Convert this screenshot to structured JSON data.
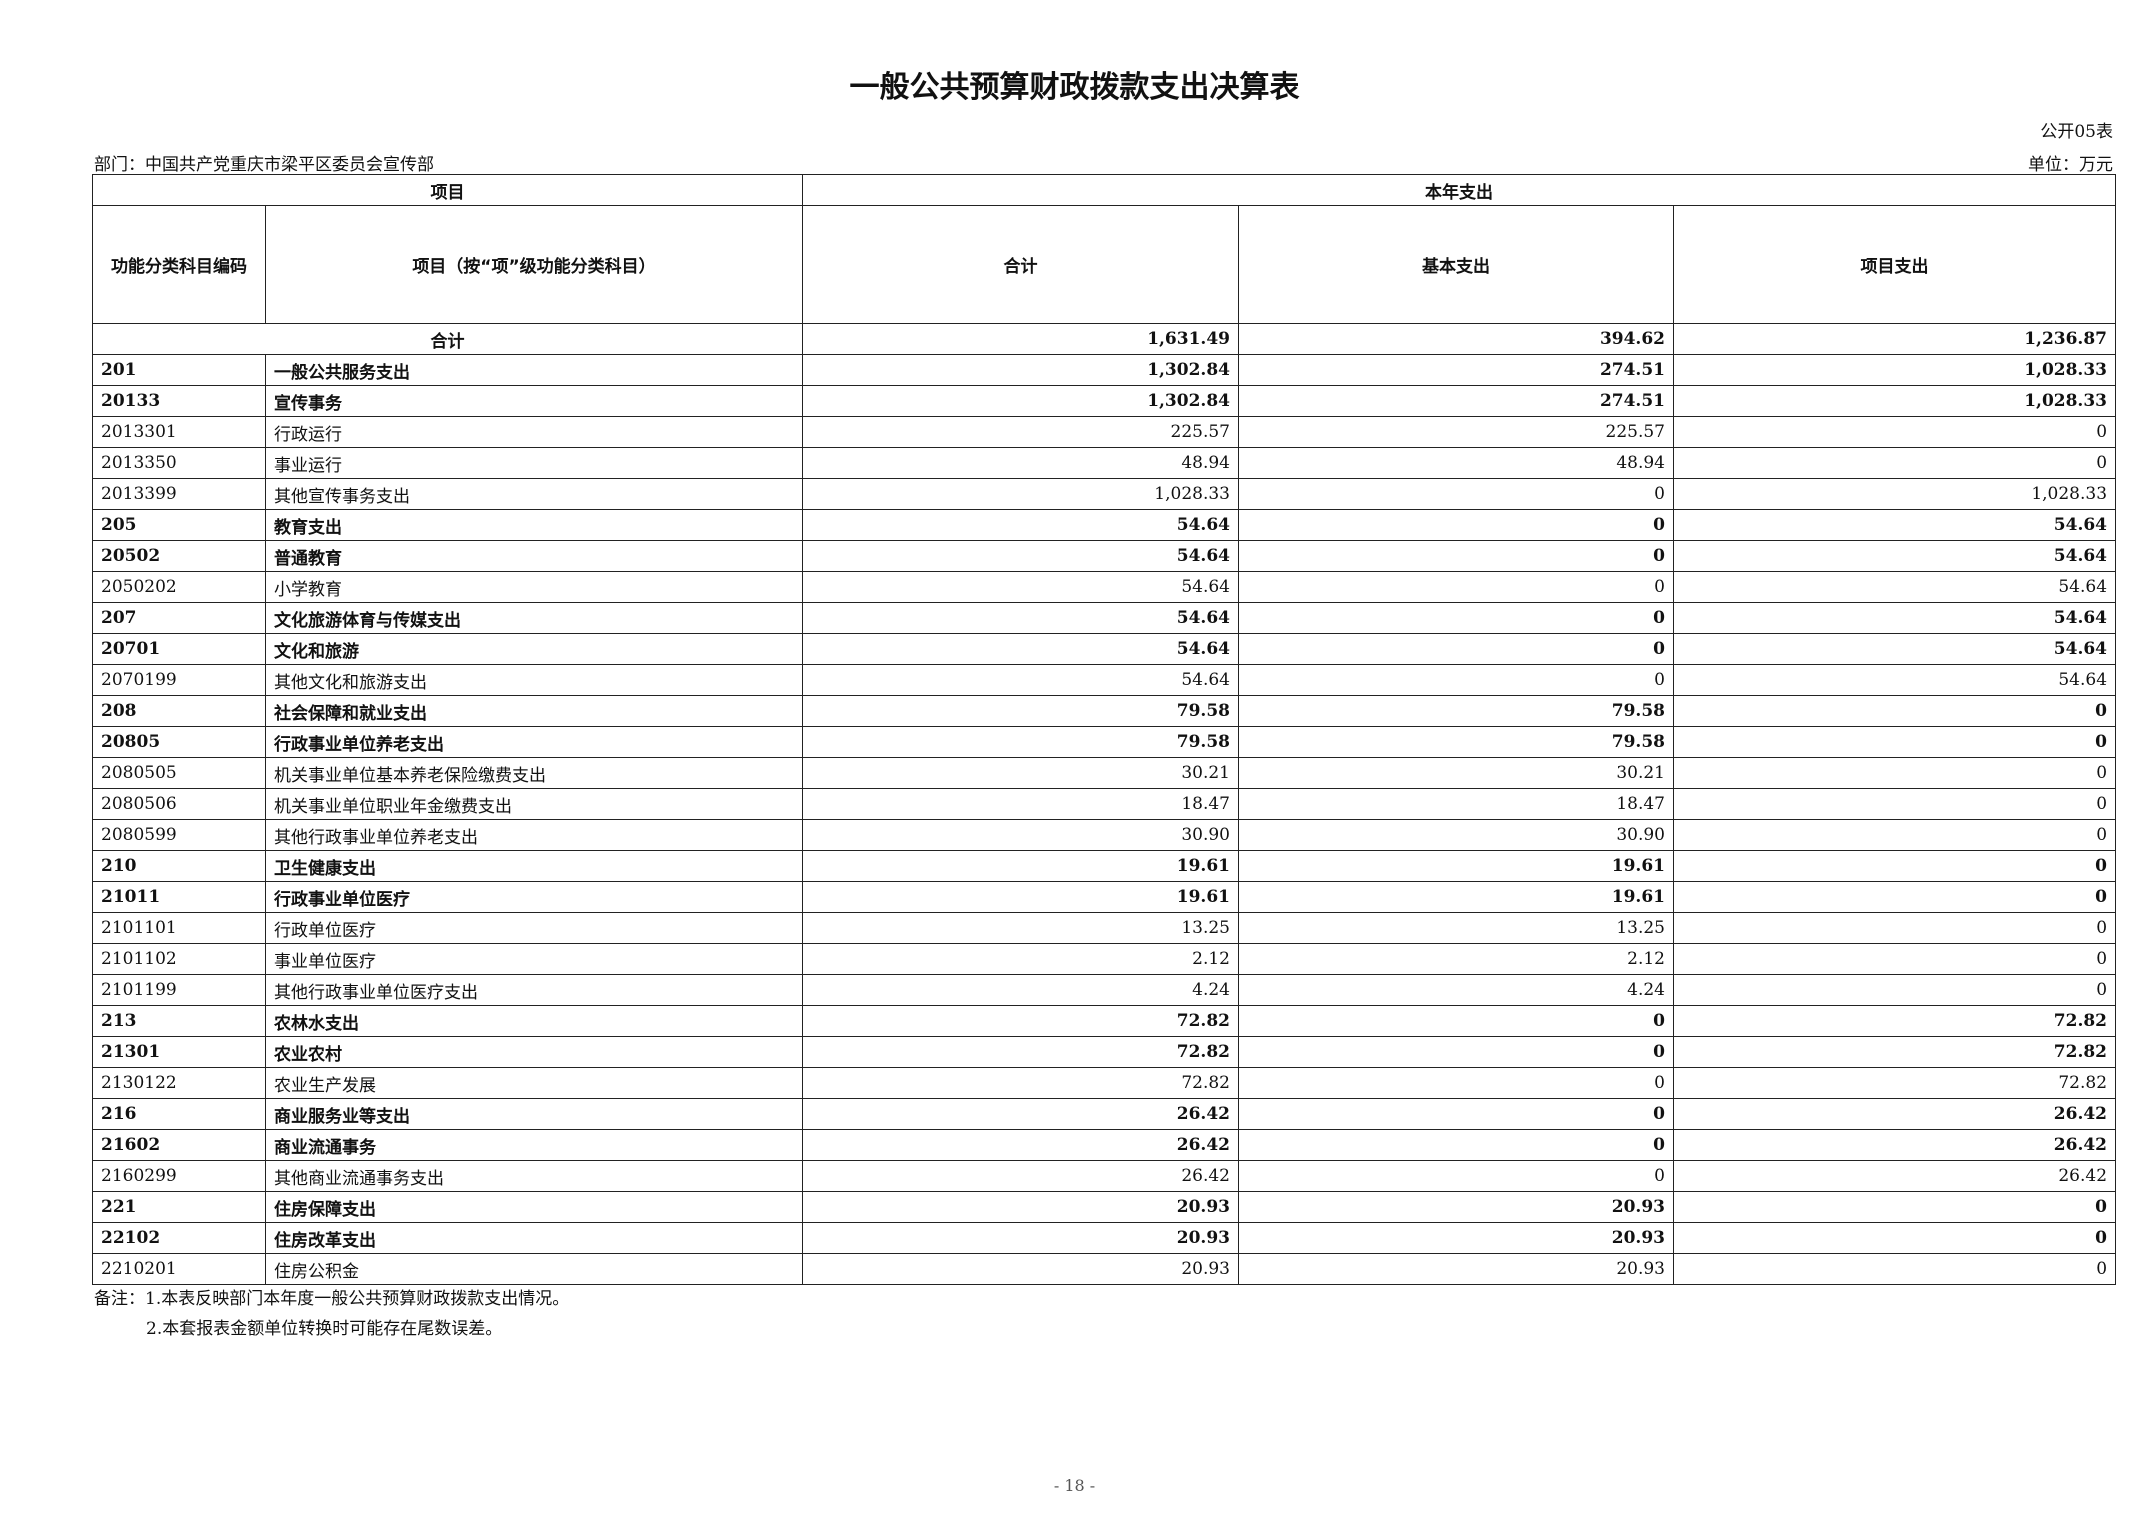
{
  "title": "一般公共预算财政拨款支出决算表",
  "form_no": "公开05表",
  "department": "部门：中国共产党重庆市梁平区委员会宣传部",
  "unit": "单位：万元",
  "header": {
    "item_group": "项目",
    "current_year_group": "本年支出",
    "code": "功能分类科目编码",
    "name": "项目（按“项”级功能分类科目）",
    "total": "合计",
    "basic": "基本支出",
    "project": "项目支出"
  },
  "total_row": {
    "label": "合计",
    "total": "1,631.49",
    "basic": "394.62",
    "project": "1,236.87"
  },
  "rows": [
    {
      "code": "201",
      "name": "一般公共服务支出",
      "total": "1,302.84",
      "basic": "274.51",
      "project": "1,028.33",
      "bold": true
    },
    {
      "code": "20133",
      "name": "宣传事务",
      "total": "1,302.84",
      "basic": "274.51",
      "project": "1,028.33",
      "bold": true
    },
    {
      "code": "2013301",
      "name": "行政运行",
      "total": "225.57",
      "basic": "225.57",
      "project": "0",
      "bold": false
    },
    {
      "code": "2013350",
      "name": "事业运行",
      "total": "48.94",
      "basic": "48.94",
      "project": "0",
      "bold": false
    },
    {
      "code": "2013399",
      "name": "其他宣传事务支出",
      "total": "1,028.33",
      "basic": "0",
      "project": "1,028.33",
      "bold": false
    },
    {
      "code": "205",
      "name": "教育支出",
      "total": "54.64",
      "basic": "0",
      "project": "54.64",
      "bold": true
    },
    {
      "code": "20502",
      "name": "普通教育",
      "total": "54.64",
      "basic": "0",
      "project": "54.64",
      "bold": true
    },
    {
      "code": "2050202",
      "name": "小学教育",
      "total": "54.64",
      "basic": "0",
      "project": "54.64",
      "bold": false
    },
    {
      "code": "207",
      "name": "文化旅游体育与传媒支出",
      "total": "54.64",
      "basic": "0",
      "project": "54.64",
      "bold": true
    },
    {
      "code": "20701",
      "name": "文化和旅游",
      "total": "54.64",
      "basic": "0",
      "project": "54.64",
      "bold": true
    },
    {
      "code": "2070199",
      "name": "其他文化和旅游支出",
      "total": "54.64",
      "basic": "0",
      "project": "54.64",
      "bold": false
    },
    {
      "code": "208",
      "name": "社会保障和就业支出",
      "total": "79.58",
      "basic": "79.58",
      "project": "0",
      "bold": true
    },
    {
      "code": "20805",
      "name": "行政事业单位养老支出",
      "total": "79.58",
      "basic": "79.58",
      "project": "0",
      "bold": true
    },
    {
      "code": "2080505",
      "name": "机关事业单位基本养老保险缴费支出",
      "total": "30.21",
      "basic": "30.21",
      "project": "0",
      "bold": false
    },
    {
      "code": "2080506",
      "name": "机关事业单位职业年金缴费支出",
      "total": "18.47",
      "basic": "18.47",
      "project": "0",
      "bold": false
    },
    {
      "code": "2080599",
      "name": "其他行政事业单位养老支出",
      "total": "30.90",
      "basic": "30.90",
      "project": "0",
      "bold": false
    },
    {
      "code": "210",
      "name": "卫生健康支出",
      "total": "19.61",
      "basic": "19.61",
      "project": "0",
      "bold": true
    },
    {
      "code": "21011",
      "name": "行政事业单位医疗",
      "total": "19.61",
      "basic": "19.61",
      "project": "0",
      "bold": true
    },
    {
      "code": "2101101",
      "name": "行政单位医疗",
      "total": "13.25",
      "basic": "13.25",
      "project": "0",
      "bold": false
    },
    {
      "code": "2101102",
      "name": "事业单位医疗",
      "total": "2.12",
      "basic": "2.12",
      "project": "0",
      "bold": false
    },
    {
      "code": "2101199",
      "name": "其他行政事业单位医疗支出",
      "total": "4.24",
      "basic": "4.24",
      "project": "0",
      "bold": false
    },
    {
      "code": "213",
      "name": "农林水支出",
      "total": "72.82",
      "basic": "0",
      "project": "72.82",
      "bold": true
    },
    {
      "code": "21301",
      "name": "农业农村",
      "total": "72.82",
      "basic": "0",
      "project": "72.82",
      "bold": true
    },
    {
      "code": "2130122",
      "name": "农业生产发展",
      "total": "72.82",
      "basic": "0",
      "project": "72.82",
      "bold": false
    },
    {
      "code": "216",
      "name": "商业服务业等支出",
      "total": "26.42",
      "basic": "0",
      "project": "26.42",
      "bold": true
    },
    {
      "code": "21602",
      "name": "商业流通事务",
      "total": "26.42",
      "basic": "0",
      "project": "26.42",
      "bold": true
    },
    {
      "code": "2160299",
      "name": "其他商业流通事务支出",
      "total": "26.42",
      "basic": "0",
      "project": "26.42",
      "bold": false
    },
    {
      "code": "221",
      "name": "住房保障支出",
      "total": "20.93",
      "basic": "20.93",
      "project": "0",
      "bold": true
    },
    {
      "code": "22102",
      "name": "住房改革支出",
      "total": "20.93",
      "basic": "20.93",
      "project": "0",
      "bold": true
    },
    {
      "code": "2210201",
      "name": "住房公积金",
      "total": "20.93",
      "basic": "20.93",
      "project": "0",
      "bold": false
    }
  ],
  "notes": [
    "备注：1.本表反映部门本年度一般公共预算财政拨款支出情况。",
    "2.本套报表金额单位转换时可能存在尾数误差。"
  ],
  "page_number": "- 18 -"
}
